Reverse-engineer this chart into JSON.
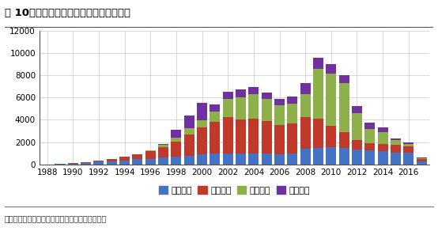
{
  "title": "图 10、武田制药的创新药对其营收的贡献",
  "source": "资料来源：彭博，兴业证券经济和金融研究院整理",
  "years": [
    1988,
    1989,
    1990,
    1991,
    1992,
    1993,
    1994,
    1995,
    1996,
    1997,
    1998,
    1999,
    2000,
    2001,
    2002,
    2003,
    2004,
    2005,
    2006,
    2007,
    2008,
    2009,
    2010,
    2011,
    2012,
    2013,
    2014,
    2015,
    2016,
    2017
  ],
  "series": {
    "亮丙瑞林": [
      20,
      30,
      80,
      170,
      250,
      310,
      380,
      460,
      520,
      620,
      700,
      800,
      900,
      950,
      950,
      950,
      980,
      970,
      930,
      950,
      1380,
      1480,
      1580,
      1480,
      1350,
      1250,
      1180,
      1080,
      1050,
      280
    ],
    "兰索拉唑": [
      0,
      0,
      20,
      60,
      130,
      200,
      320,
      480,
      680,
      950,
      1350,
      1900,
      2400,
      2900,
      3300,
      3100,
      3100,
      2900,
      2600,
      2700,
      2900,
      2600,
      1900,
      1400,
      870,
      650,
      650,
      650,
      580,
      180
    ],
    "坎地沙坦": [
      0,
      0,
      0,
      0,
      0,
      0,
      0,
      0,
      80,
      180,
      380,
      580,
      680,
      900,
      1600,
      2000,
      2200,
      2000,
      1800,
      1800,
      2000,
      4500,
      4700,
      4400,
      2400,
      1300,
      1100,
      450,
      180,
      80
    ],
    "吡格列酮": [
      0,
      0,
      0,
      0,
      0,
      0,
      0,
      0,
      0,
      100,
      700,
      1100,
      1550,
      600,
      650,
      650,
      650,
      550,
      550,
      650,
      1000,
      950,
      850,
      750,
      650,
      550,
      380,
      180,
      180,
      80
    ]
  },
  "colors": {
    "亮丙瑞林": "#4472c4",
    "兰索拉唑": "#c0392b",
    "坎地沙坦": "#8db04b",
    "吡格列酮": "#7030a0"
  },
  "ylim": [
    0,
    12000
  ],
  "yticks": [
    0,
    2000,
    4000,
    6000,
    8000,
    10000,
    12000
  ],
  "xlim_left": 1987.4,
  "xlim_right": 2017.6,
  "background_color": "#ffffff",
  "grid_color": "#c8c8c8",
  "title_fontsize": 9.5,
  "legend_fontsize": 8,
  "tick_fontsize": 7.5,
  "source_fontsize": 7
}
